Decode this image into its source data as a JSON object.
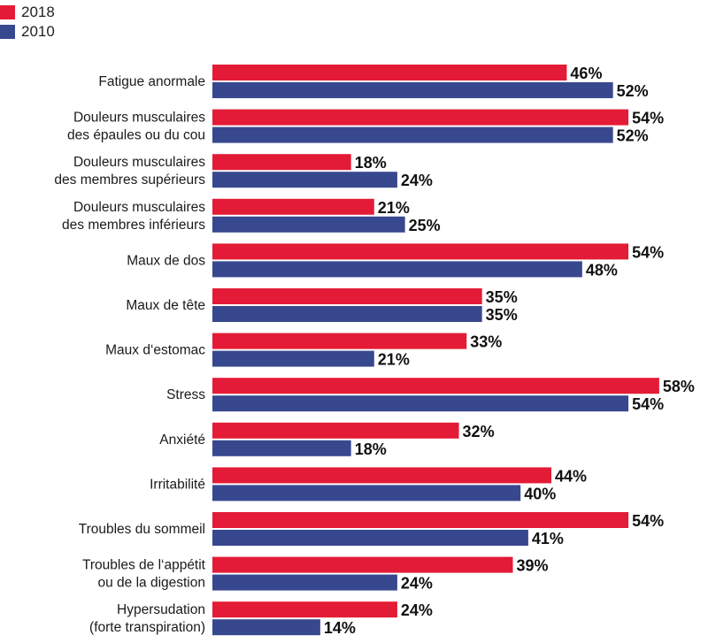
{
  "legend": [
    {
      "name": "2018",
      "color": "#e41b36"
    },
    {
      "name": "2010",
      "color": "#38488f"
    }
  ],
  "chart_data": {
    "type": "bar",
    "orientation": "horizontal",
    "categories": [
      [
        "Fatigue anormale"
      ],
      [
        "Douleurs musculaires",
        "des épaules ou du cou"
      ],
      [
        "Douleurs musculaires",
        "des membres supérieurs"
      ],
      [
        "Douleurs musculaires",
        "des membres inférieurs"
      ],
      [
        "Maux de dos"
      ],
      [
        "Maux de tête"
      ],
      [
        "Maux d‘estomac"
      ],
      [
        "Stress"
      ],
      [
        "Anxiété"
      ],
      [
        "Irritabilité"
      ],
      [
        "Troubles du sommeil"
      ],
      [
        "Troubles de l‘appétit",
        "ou de la digestion"
      ],
      [
        "Hypersudation",
        "(forte transpiration)"
      ]
    ],
    "series": [
      {
        "name": "2018",
        "color": "#e41b36",
        "values": [
          46,
          54,
          18,
          21,
          54,
          35,
          33,
          58,
          32,
          44,
          54,
          39,
          24
        ]
      },
      {
        "name": "2010",
        "color": "#38488f",
        "values": [
          52,
          52,
          24,
          25,
          48,
          35,
          21,
          54,
          18,
          40,
          41,
          24,
          14
        ]
      }
    ],
    "value_suffix": "%",
    "xlim": [
      0,
      58
    ],
    "grid": false,
    "legend_position": "top-left",
    "title": "",
    "xlabel": "",
    "ylabel": ""
  }
}
